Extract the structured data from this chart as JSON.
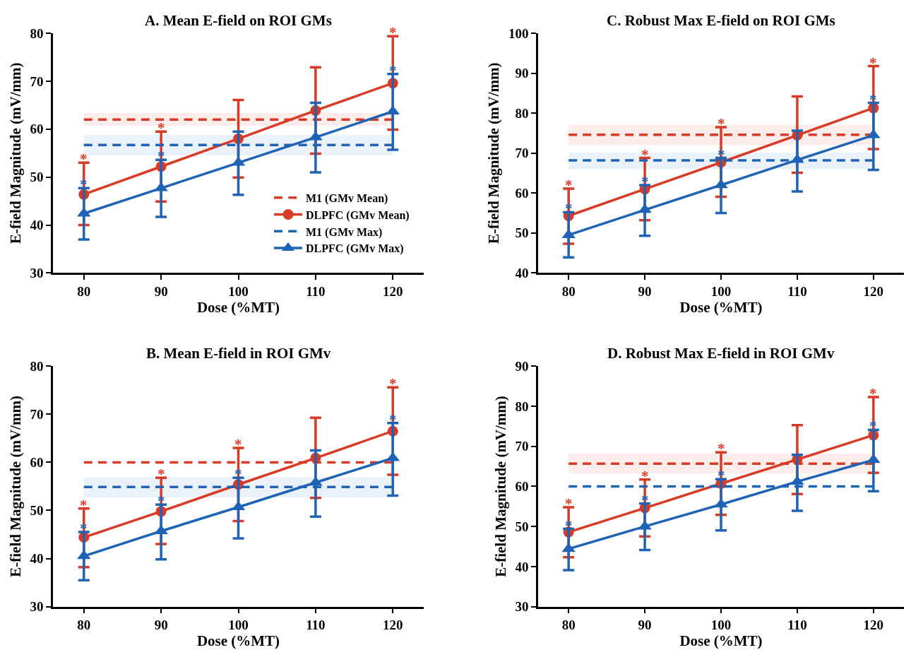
{
  "chart_data": [
    {
      "type": "line",
      "title": "A. Mean E-field on ROI GMs",
      "xlabel": "Dose (%MT)",
      "ylabel": "E-field Magnitude (mV/mm)",
      "x": [
        80,
        90,
        100,
        110,
        120
      ],
      "xlim": [
        76,
        124
      ],
      "xticks": [
        80,
        90,
        100,
        110,
        120
      ],
      "ylim": [
        30,
        80
      ],
      "yticks": [
        30,
        40,
        50,
        60,
        70,
        80
      ],
      "legend": "bottom right",
      "line_style": "solid",
      "annotations": [
        {
          "text": "*",
          "x": 80,
          "y": 53.0
        },
        {
          "text": "*",
          "x": 90,
          "y": 59.5
        },
        {
          "text": "*",
          "x": 120,
          "y": 79.4
        },
        {
          "text": "*",
          "x": 80,
          "y": 47.7
        },
        {
          "text": "*",
          "x": 90,
          "y": 53.6
        },
        {
          "text": "*",
          "x": 120,
          "y": 71.5
        }
      ],
      "series": [
        {
          "name": "M1 (GMv Mean)",
          "type": "line",
          "color": "#d93a26",
          "values": [
            62.0,
            62.0,
            62.0,
            62.0,
            62.0
          ],
          "lower": [
            60.7,
            60.7,
            60.7,
            60.7,
            60.7
          ],
          "upper": [
            63.4,
            63.4,
            63.4,
            63.4,
            63.4
          ],
          "line_style": "dashed",
          "marker": "none"
        },
        {
          "name": "DLPFC (GMv Mean)",
          "color": "#d93a26",
          "marker": "circle",
          "values": [
            46.4,
            52.2,
            58.0,
            63.9,
            69.6
          ],
          "errors": [
            [
              40.0,
              53.0
            ],
            [
              44.9,
              59.5
            ],
            [
              49.9,
              66.1
            ],
            [
              54.9,
              72.9
            ],
            [
              59.9,
              79.4
            ]
          ]
        },
        {
          "name": "M1 (GMv Max)",
          "type": "line",
          "color": "#1f64b4",
          "values": [
            56.7,
            56.7,
            56.7,
            56.7,
            56.7
          ],
          "lower": [
            54.5,
            54.5,
            54.5,
            54.5,
            54.5
          ],
          "upper": [
            58.8,
            58.8,
            58.8,
            58.8,
            58.8
          ],
          "line_style": "dashed",
          "marker": "none"
        },
        {
          "name": "DLPFC (GMv Max)",
          "color": "#1f64b4",
          "marker": "triangle",
          "values": [
            42.4,
            47.7,
            53.0,
            58.3,
            63.7
          ],
          "errors": [
            [
              37.0,
              47.7
            ],
            [
              41.7,
              53.6
            ],
            [
              46.3,
              59.5
            ],
            [
              51.0,
              65.5
            ],
            [
              55.7,
              71.5
            ]
          ]
        }
      ]
    },
    {
      "type": "line",
      "title": "C. Robust Max E-field on ROI GMs",
      "xlabel": "Dose (%MT)",
      "ylabel": "E-field Magnitude (mV/mm)",
      "x": [
        80,
        90,
        100,
        110,
        120
      ],
      "xlim": [
        76,
        124
      ],
      "xticks": [
        80,
        90,
        100,
        110,
        120
      ],
      "ylim": [
        40,
        100
      ],
      "yticks": [
        40,
        50,
        60,
        70,
        80,
        90,
        100
      ],
      "line_style": "solid",
      "annotations": [
        {
          "text": "*",
          "x": 80,
          "y": 61.1
        },
        {
          "text": "*",
          "x": 90,
          "y": 68.8
        },
        {
          "text": "*",
          "x": 100,
          "y": 76.5
        },
        {
          "text": "*",
          "x": 120,
          "y": 91.8
        },
        {
          "text": "*",
          "x": 80,
          "y": 55.2
        },
        {
          "text": "*",
          "x": 90,
          "y": 62.0
        },
        {
          "text": "*",
          "x": 100,
          "y": 68.8
        },
        {
          "text": "*",
          "x": 120,
          "y": 82.6
        }
      ],
      "series": [
        {
          "type": "line",
          "color": "#d93a26",
          "values": [
            74.6,
            74.6,
            74.6,
            74.6,
            74.6
          ],
          "lower": [
            72.0,
            72.0,
            72.0,
            72.0,
            72.0
          ],
          "upper": [
            77.1,
            77.1,
            77.1,
            77.1,
            77.1
          ],
          "line_style": "dashed",
          "marker": "none"
        },
        {
          "color": "#d93a26",
          "marker": "circle",
          "values": [
            54.3,
            61.0,
            67.7,
            74.5,
            81.3
          ],
          "errors": [
            [
              47.3,
              61.1
            ],
            [
              53.2,
              68.8
            ],
            [
              59.1,
              76.5
            ],
            [
              65.1,
              84.2
            ],
            [
              71.0,
              91.8
            ]
          ]
        },
        {
          "type": "line",
          "color": "#1f64b4",
          "values": [
            68.2,
            68.2,
            68.2,
            68.2,
            68.2
          ],
          "lower": [
            66.0,
            66.0,
            66.0,
            66.0,
            66.0
          ],
          "upper": [
            70.2,
            70.2,
            70.2,
            70.2,
            70.2
          ],
          "line_style": "dashed",
          "marker": "none"
        },
        {
          "color": "#1f64b4",
          "marker": "triangle",
          "values": [
            49.5,
            55.8,
            62.0,
            68.3,
            74.5
          ],
          "errors": [
            [
              43.9,
              55.2
            ],
            [
              49.3,
              62.0
            ],
            [
              55.0,
              68.8
            ],
            [
              60.4,
              75.6
            ],
            [
              65.8,
              82.6
            ]
          ]
        }
      ]
    },
    {
      "type": "line",
      "title": "B. Mean E-field in ROI GMv",
      "xlabel": "Dose (%MT)",
      "ylabel": "E-field Magnitude (mV/mm)",
      "x": [
        80,
        90,
        100,
        110,
        120
      ],
      "xlim": [
        76,
        124
      ],
      "xticks": [
        80,
        90,
        100,
        110,
        120
      ],
      "ylim": [
        30,
        80
      ],
      "yticks": [
        30,
        40,
        50,
        60,
        70,
        80
      ],
      "line_style": "solid",
      "annotations": [
        {
          "text": "*",
          "x": 80,
          "y": 50.4
        },
        {
          "text": "*",
          "x": 90,
          "y": 56.8
        },
        {
          "text": "*",
          "x": 100,
          "y": 63.0
        },
        {
          "text": "*",
          "x": 120,
          "y": 75.6
        },
        {
          "text": "*",
          "x": 80,
          "y": 45.5
        },
        {
          "text": "*",
          "x": 90,
          "y": 51.2
        },
        {
          "text": "*",
          "x": 100,
          "y": 56.8
        },
        {
          "text": "*",
          "x": 120,
          "y": 68.2
        }
      ],
      "series": [
        {
          "type": "line",
          "color": "#d93a26",
          "values": [
            60.0,
            60.0,
            60.0,
            60.0,
            60.0
          ],
          "line_style": "dashed",
          "marker": "none"
        },
        {
          "color": "#d93a26",
          "marker": "circle",
          "values": [
            44.4,
            49.8,
            55.4,
            60.9,
            66.5
          ],
          "errors": [
            [
              38.2,
              50.4
            ],
            [
              43.0,
              56.8
            ],
            [
              47.8,
              63.0
            ],
            [
              52.6,
              69.3
            ],
            [
              57.4,
              75.6
            ]
          ]
        },
        {
          "type": "line",
          "color": "#1f64b4",
          "values": [
            54.9,
            54.9,
            54.9,
            54.9,
            54.9
          ],
          "lower": [
            52.7,
            52.7,
            52.7,
            52.7,
            52.7
          ],
          "upper": [
            56.9,
            56.9,
            56.9,
            56.9,
            56.9
          ],
          "line_style": "dashed",
          "marker": "none"
        },
        {
          "color": "#1f64b4",
          "marker": "triangle",
          "values": [
            40.5,
            45.7,
            50.7,
            55.8,
            60.9
          ],
          "errors": [
            [
              35.5,
              45.5
            ],
            [
              39.8,
              51.2
            ],
            [
              44.2,
              56.8
            ],
            [
              48.7,
              62.5
            ],
            [
              53.1,
              68.2
            ]
          ]
        }
      ]
    },
    {
      "type": "line",
      "title": "D. Robust Max E-field in ROI GMv",
      "xlabel": "Dose (%MT)",
      "ylabel": "E-field Magnitude (mV/mm)",
      "x": [
        80,
        90,
        100,
        110,
        120
      ],
      "xlim": [
        76,
        124
      ],
      "xticks": [
        80,
        90,
        100,
        110,
        120
      ],
      "ylim": [
        30,
        90
      ],
      "yticks": [
        30,
        40,
        50,
        60,
        70,
        80,
        90
      ],
      "line_style": "solid",
      "annotations": [
        {
          "text": "*",
          "x": 80,
          "y": 54.8
        },
        {
          "text": "*",
          "x": 90,
          "y": 61.7
        },
        {
          "text": "*",
          "x": 100,
          "y": 68.5
        },
        {
          "text": "*",
          "x": 120,
          "y": 82.3
        },
        {
          "text": "*",
          "x": 80,
          "y": 49.4
        },
        {
          "text": "*",
          "x": 90,
          "y": 55.7
        },
        {
          "text": "*",
          "x": 100,
          "y": 61.8
        },
        {
          "text": "*",
          "x": 120,
          "y": 74.1
        }
      ],
      "series": [
        {
          "type": "line",
          "color": "#d93a26",
          "values": [
            65.7,
            65.7,
            65.7,
            65.7,
            65.7
          ],
          "lower": [
            63.2,
            63.2,
            63.2,
            63.2,
            63.2
          ],
          "upper": [
            68.2,
            68.2,
            68.2,
            68.2,
            68.2
          ],
          "line_style": "dashed",
          "marker": "none"
        },
        {
          "color": "#d93a26",
          "marker": "circle",
          "values": [
            48.6,
            54.6,
            60.7,
            66.7,
            72.8
          ],
          "errors": [
            [
              42.3,
              54.8
            ],
            [
              47.5,
              61.7
            ],
            [
              52.9,
              68.5
            ],
            [
              58.1,
              75.3
            ],
            [
              63.4,
              82.3
            ]
          ]
        },
        {
          "type": "line",
          "color": "#1f64b4",
          "values": [
            60.0,
            60.0,
            60.0,
            60.0,
            60.0
          ],
          "line_style": "dashed",
          "marker": "none"
        },
        {
          "color": "#1f64b4",
          "marker": "triangle",
          "values": [
            44.4,
            50.0,
            55.5,
            61.2,
            66.6
          ],
          "errors": [
            [
              39.1,
              49.4
            ],
            [
              44.1,
              55.7
            ],
            [
              49.0,
              61.8
            ],
            [
              53.9,
              67.9
            ],
            [
              58.8,
              74.1
            ]
          ]
        }
      ]
    }
  ]
}
